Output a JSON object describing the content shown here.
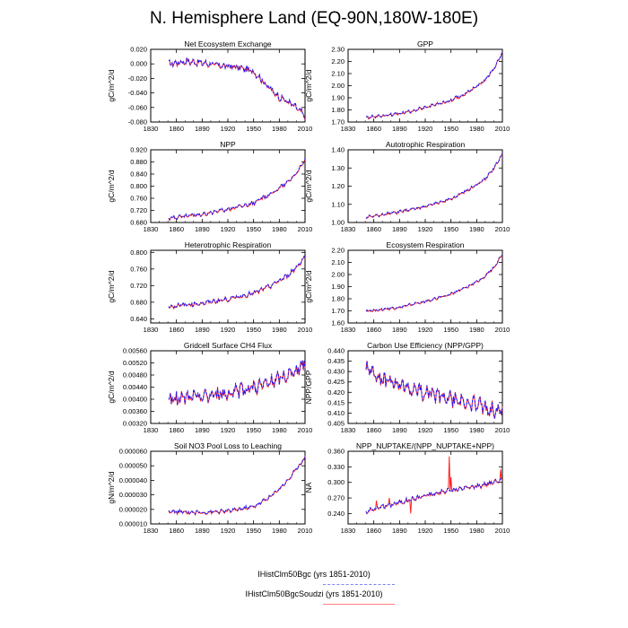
{
  "title": "N. Hemisphere Land (EQ-90N,180W-180E)",
  "colors": {
    "case1": "#1a1aff",
    "case2": "#ff2020"
  },
  "legend": [
    {
      "label": "IHistClm50Bgc (yrs 1851-2010)",
      "color": "#8080ff",
      "style": "dashed"
    },
    {
      "label": "IHistClm50BgcSoudzi (yrs 1851-2010)",
      "color": "#ff8080",
      "style": "solid"
    }
  ],
  "chart_data": [
    {
      "type": "line",
      "title": "Net Ecosystem Exchange",
      "ylabel": "gC/m^2/d",
      "xlim": [
        1830,
        2010
      ],
      "xticks": [
        "1830",
        "1860",
        "1890",
        "1920",
        "1950",
        "1980",
        "2010"
      ],
      "ylim": [
        -0.08,
        0.02
      ],
      "yticks": [
        "-0.080",
        "-0.060",
        "-0.040",
        "-0.020",
        "0.000",
        "0.020"
      ],
      "trend": [
        [
          1851,
          0.0
        ],
        [
          1870,
          0.004
        ],
        [
          1890,
          0.002
        ],
        [
          1910,
          -0.002
        ],
        [
          1930,
          -0.004
        ],
        [
          1950,
          -0.01
        ],
        [
          1960,
          -0.022
        ],
        [
          1970,
          -0.035
        ],
        [
          1980,
          -0.045
        ],
        [
          1990,
          -0.052
        ],
        [
          2000,
          -0.06
        ],
        [
          2010,
          -0.072
        ]
      ],
      "noise": 0.0045
    },
    {
      "type": "line",
      "title": "GPP",
      "ylabel": "gC/m^2/d",
      "xlim": [
        1830,
        2010
      ],
      "xticks": [
        "1830",
        "1860",
        "1890",
        "1920",
        "1950",
        "1980",
        "2010"
      ],
      "ylim": [
        1.7,
        2.3
      ],
      "yticks": [
        "1.70",
        "1.80",
        "1.90",
        "2.00",
        "2.10",
        "2.20",
        "2.30"
      ],
      "trend": [
        [
          1851,
          1.74
        ],
        [
          1890,
          1.77
        ],
        [
          1920,
          1.82
        ],
        [
          1950,
          1.88
        ],
        [
          1970,
          1.95
        ],
        [
          1990,
          2.05
        ],
        [
          2000,
          2.14
        ],
        [
          2010,
          2.27
        ]
      ],
      "noise": 0.012
    },
    {
      "type": "line",
      "title": "NPP",
      "ylabel": "gC/m^2/d",
      "xlim": [
        1830,
        2010
      ],
      "xticks": [
        "1830",
        "1860",
        "1890",
        "1920",
        "1950",
        "1980",
        "2010"
      ],
      "ylim": [
        0.68,
        0.92
      ],
      "yticks": [
        "0.680",
        "0.720",
        "0.760",
        "0.800",
        "0.840",
        "0.880",
        "0.920"
      ],
      "trend": [
        [
          1851,
          0.695
        ],
        [
          1890,
          0.708
        ],
        [
          1920,
          0.725
        ],
        [
          1950,
          0.745
        ],
        [
          1970,
          0.775
        ],
        [
          1990,
          0.815
        ],
        [
          2000,
          0.845
        ],
        [
          2010,
          0.885
        ]
      ],
      "noise": 0.006
    },
    {
      "type": "line",
      "title": "Autotrophic Respiration",
      "ylabel": "gC/m^2/d",
      "xlim": [
        1830,
        2010
      ],
      "xticks": [
        "1830",
        "1860",
        "1890",
        "1920",
        "1950",
        "1980",
        "2010"
      ],
      "ylim": [
        1.0,
        1.4
      ],
      "yticks": [
        "1.00",
        "1.10",
        "1.20",
        "1.30",
        "1.40"
      ],
      "trend": [
        [
          1851,
          1.03
        ],
        [
          1890,
          1.06
        ],
        [
          1920,
          1.09
        ],
        [
          1950,
          1.13
        ],
        [
          1970,
          1.18
        ],
        [
          1990,
          1.24
        ],
        [
          2000,
          1.3
        ],
        [
          2010,
          1.38
        ]
      ],
      "noise": 0.007
    },
    {
      "type": "line",
      "title": "Heterotrophic Respiration",
      "ylabel": "gC/m^2/d",
      "xlim": [
        1830,
        2010
      ],
      "xticks": [
        "1830",
        "1860",
        "1890",
        "1920",
        "1950",
        "1980",
        "2010"
      ],
      "ylim": [
        0.63,
        0.805
      ],
      "yticks": [
        "0.640",
        "0.680",
        "0.720",
        "0.760",
        "0.800"
      ],
      "trend": [
        [
          1851,
          0.67
        ],
        [
          1890,
          0.678
        ],
        [
          1920,
          0.688
        ],
        [
          1950,
          0.702
        ],
        [
          1970,
          0.72
        ],
        [
          1990,
          0.745
        ],
        [
          2000,
          0.765
        ],
        [
          2010,
          0.79
        ]
      ],
      "noise": 0.005
    },
    {
      "type": "line",
      "title": "Ecosystem Respiration",
      "ylabel": "gC/m^2/d",
      "xlim": [
        1830,
        2010
      ],
      "xticks": [
        "1830",
        "1860",
        "1890",
        "1920",
        "1950",
        "1980",
        "2010"
      ],
      "ylim": [
        1.6,
        2.2
      ],
      "yticks": [
        "1.60",
        "1.70",
        "1.80",
        "1.90",
        "2.00",
        "2.10",
        "2.20"
      ],
      "trend": [
        [
          1851,
          1.7
        ],
        [
          1890,
          1.73
        ],
        [
          1920,
          1.78
        ],
        [
          1950,
          1.84
        ],
        [
          1970,
          1.9
        ],
        [
          1990,
          1.99
        ],
        [
          2000,
          2.06
        ],
        [
          2010,
          2.17
        ]
      ],
      "noise": 0.01
    },
    {
      "type": "line",
      "title": "Gridcell Surface CH4 Flux",
      "ylabel": "gC/m^2/d",
      "xlim": [
        1830,
        2010
      ],
      "xticks": [
        "1830",
        "1860",
        "1890",
        "1920",
        "1950",
        "1980",
        "2010"
      ],
      "ylim": [
        0.0032,
        0.0056
      ],
      "yticks": [
        "0.00320",
        "0.00360",
        "0.00400",
        "0.00440",
        "0.00480",
        "0.00520",
        "0.00560"
      ],
      "trend": [
        [
          1851,
          0.004
        ],
        [
          1890,
          0.0041
        ],
        [
          1920,
          0.0042
        ],
        [
          1950,
          0.0044
        ],
        [
          1970,
          0.00455
        ],
        [
          1990,
          0.0048
        ],
        [
          2000,
          0.005
        ],
        [
          2010,
          0.00525
        ]
      ],
      "noise": 0.00022
    },
    {
      "type": "line",
      "title": "Carbon Use Efficiency (NPP/GPP)",
      "ylabel": "NPP/GPP",
      "xlim": [
        1830,
        2010
      ],
      "xticks": [
        "1830",
        "1860",
        "1890",
        "1920",
        "1950",
        "1980",
        "2010"
      ],
      "ylim": [
        0.405,
        0.44
      ],
      "yticks": [
        "0.405",
        "0.410",
        "0.415",
        "0.420",
        "0.425",
        "0.430",
        "0.435",
        "0.440"
      ],
      "trend": [
        [
          1851,
          0.432
        ],
        [
          1870,
          0.426
        ],
        [
          1900,
          0.422
        ],
        [
          1930,
          0.419
        ],
        [
          1960,
          0.416
        ],
        [
          1990,
          0.413
        ],
        [
          2010,
          0.41
        ]
      ],
      "noise": 0.0035
    },
    {
      "type": "line",
      "title": "Soil NO3 Pool Loss to Leaching",
      "ylabel": "gN/m^2/d",
      "xlim": [
        1830,
        2010
      ],
      "xticks": [
        "1830",
        "1860",
        "1890",
        "1920",
        "1950",
        "1980",
        "2010"
      ],
      "ylim": [
        1e-05,
        6e-05
      ],
      "yticks": [
        "0.000010",
        "0.000020",
        "0.000030",
        "0.000040",
        "0.000050",
        "0.000060"
      ],
      "trend": [
        [
          1851,
          1.85e-05
        ],
        [
          1890,
          1.8e-05
        ],
        [
          1920,
          1.9e-05
        ],
        [
          1950,
          2.2e-05
        ],
        [
          1970,
          2.9e-05
        ],
        [
          1990,
          4e-05
        ],
        [
          2000,
          4.8e-05
        ],
        [
          2010,
          5.6e-05
        ]
      ],
      "noise": 1.2e-06
    },
    {
      "type": "line",
      "title": "NPP_NUPTAKE/(NPP_NUPTAKE+NPP)",
      "ylabel": "NA",
      "xlim": [
        1830,
        2010
      ],
      "xticks": [
        "1830",
        "1860",
        "1890",
        "1920",
        "1950",
        "1980",
        "2010"
      ],
      "ylim": [
        0.22,
        0.36
      ],
      "yticks": [
        "0.240",
        "0.270",
        "0.300",
        "0.330",
        "0.360"
      ],
      "trend": [
        [
          1851,
          0.245
        ],
        [
          1890,
          0.262
        ],
        [
          1920,
          0.275
        ],
        [
          1950,
          0.285
        ],
        [
          1980,
          0.293
        ],
        [
          2010,
          0.305
        ]
      ],
      "noise": 0.004,
      "spikes": [
        [
          1863,
          0.265
        ],
        [
          1878,
          0.27
        ],
        [
          1903,
          0.24
        ],
        [
          1948,
          0.35
        ],
        [
          1950,
          0.31
        ],
        [
          2008,
          0.325
        ]
      ]
    }
  ]
}
